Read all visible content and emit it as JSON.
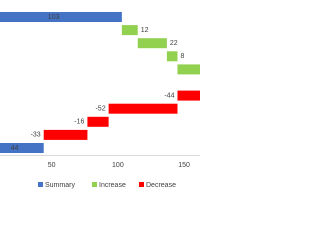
{
  "chart_data": {
    "type": "waterfall",
    "series": [
      {
        "name": "Summary",
        "color": "#4472c4"
      },
      {
        "name": "Increase",
        "color": "#92d050"
      },
      {
        "name": "Decrease",
        "color": "#ff0000"
      }
    ],
    "values": [
      103,
      12,
      22,
      8,
      20,
      24,
      -44,
      -52,
      -16,
      -33,
      44
    ],
    "kinds": [
      0,
      1,
      1,
      1,
      1,
      1,
      2,
      2,
      2,
      2,
      0
    ],
    "xlim": [
      11,
      162
    ],
    "xticks": [
      50,
      100,
      150
    ]
  }
}
